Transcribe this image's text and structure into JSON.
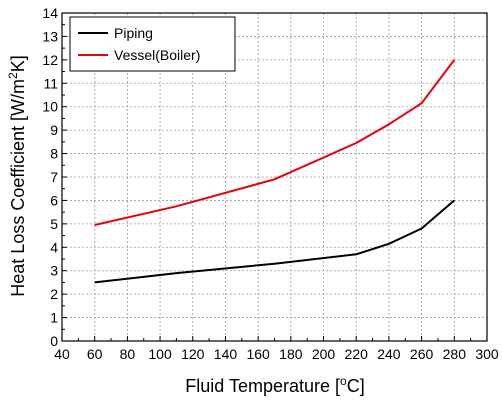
{
  "chart_data": {
    "type": "line",
    "title": "",
    "xlabel": {
      "main": "Fluid Temperature [",
      "sup": "o",
      "end": "C]"
    },
    "ylabel": {
      "main": "Heat Loss Coefficient [W/m",
      "sup": "2",
      "end": "K]"
    },
    "xlim": [
      40,
      300
    ],
    "ylim": [
      0,
      14
    ],
    "xticks": [
      40,
      60,
      80,
      100,
      120,
      140,
      160,
      180,
      200,
      220,
      240,
      260,
      280,
      300
    ],
    "yticks": [
      0,
      1,
      2,
      3,
      4,
      5,
      6,
      7,
      8,
      9,
      10,
      11,
      12,
      13,
      14
    ],
    "grid": true,
    "legend_position": "top-left",
    "series": [
      {
        "name": "Piping",
        "color": "#000000",
        "x": [
          60,
          110,
          170,
          220,
          240,
          260,
          280
        ],
        "y": [
          2.5,
          2.9,
          3.3,
          3.7,
          4.15,
          4.8,
          6.0
        ]
      },
      {
        "name": "Vessel(Boiler)",
        "color": "#e8000b",
        "x": [
          60,
          110,
          170,
          220,
          240,
          260,
          280
        ],
        "y": [
          4.95,
          5.75,
          6.9,
          8.45,
          9.25,
          10.15,
          12.0
        ]
      }
    ]
  }
}
